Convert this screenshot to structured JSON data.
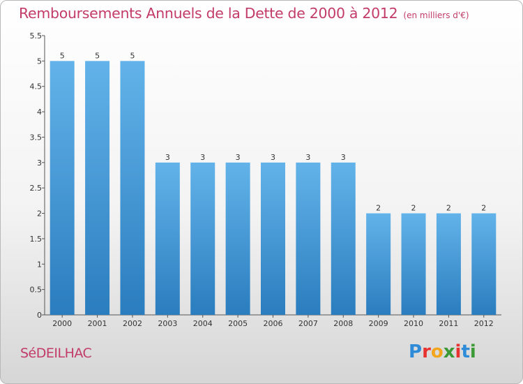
{
  "chart_data": {
    "type": "bar",
    "title": "Remboursements Annuels de la Dette de 2000 à 2012",
    "subtitle": "(en milliers d'€)",
    "categories": [
      "2000",
      "2001",
      "2002",
      "2003",
      "2004",
      "2005",
      "2006",
      "2007",
      "2008",
      "2009",
      "2010",
      "2011",
      "2012"
    ],
    "values": [
      5,
      5,
      5,
      3,
      3,
      3,
      3,
      3,
      3,
      2,
      2,
      2,
      2
    ],
    "data_labels": [
      "5",
      "5",
      "5",
      "3",
      "3",
      "3",
      "3",
      "3",
      "3",
      "2",
      "2",
      "2",
      "2"
    ],
    "y_ticks": [
      0,
      0.5,
      1,
      1.5,
      2,
      2.5,
      3,
      3.5,
      4,
      4.5,
      5,
      5.5
    ],
    "y_tick_labels": [
      "0",
      "0.5",
      "1",
      "1.5",
      "2",
      "2.5",
      "3",
      "3.5",
      "4",
      "4.5",
      "5",
      "5.5"
    ],
    "ylim": [
      0,
      5.5
    ],
    "grid": false,
    "legend": "none",
    "bar_color_top": "#63b3ea",
    "bar_color_bottom": "#2a7dbe"
  },
  "footer": {
    "commune": "SéDEILHAC",
    "logo_text": "Proxiti",
    "logo_letters": [
      "P",
      "r",
      "o",
      "x",
      "i",
      "t",
      "i"
    ],
    "logo_colors": [
      "#2d8bd8",
      "#e8322f",
      "#f2a51d",
      "#3c9a36",
      "#e8322f",
      "#2d8bd8",
      "#3c9a36"
    ]
  }
}
